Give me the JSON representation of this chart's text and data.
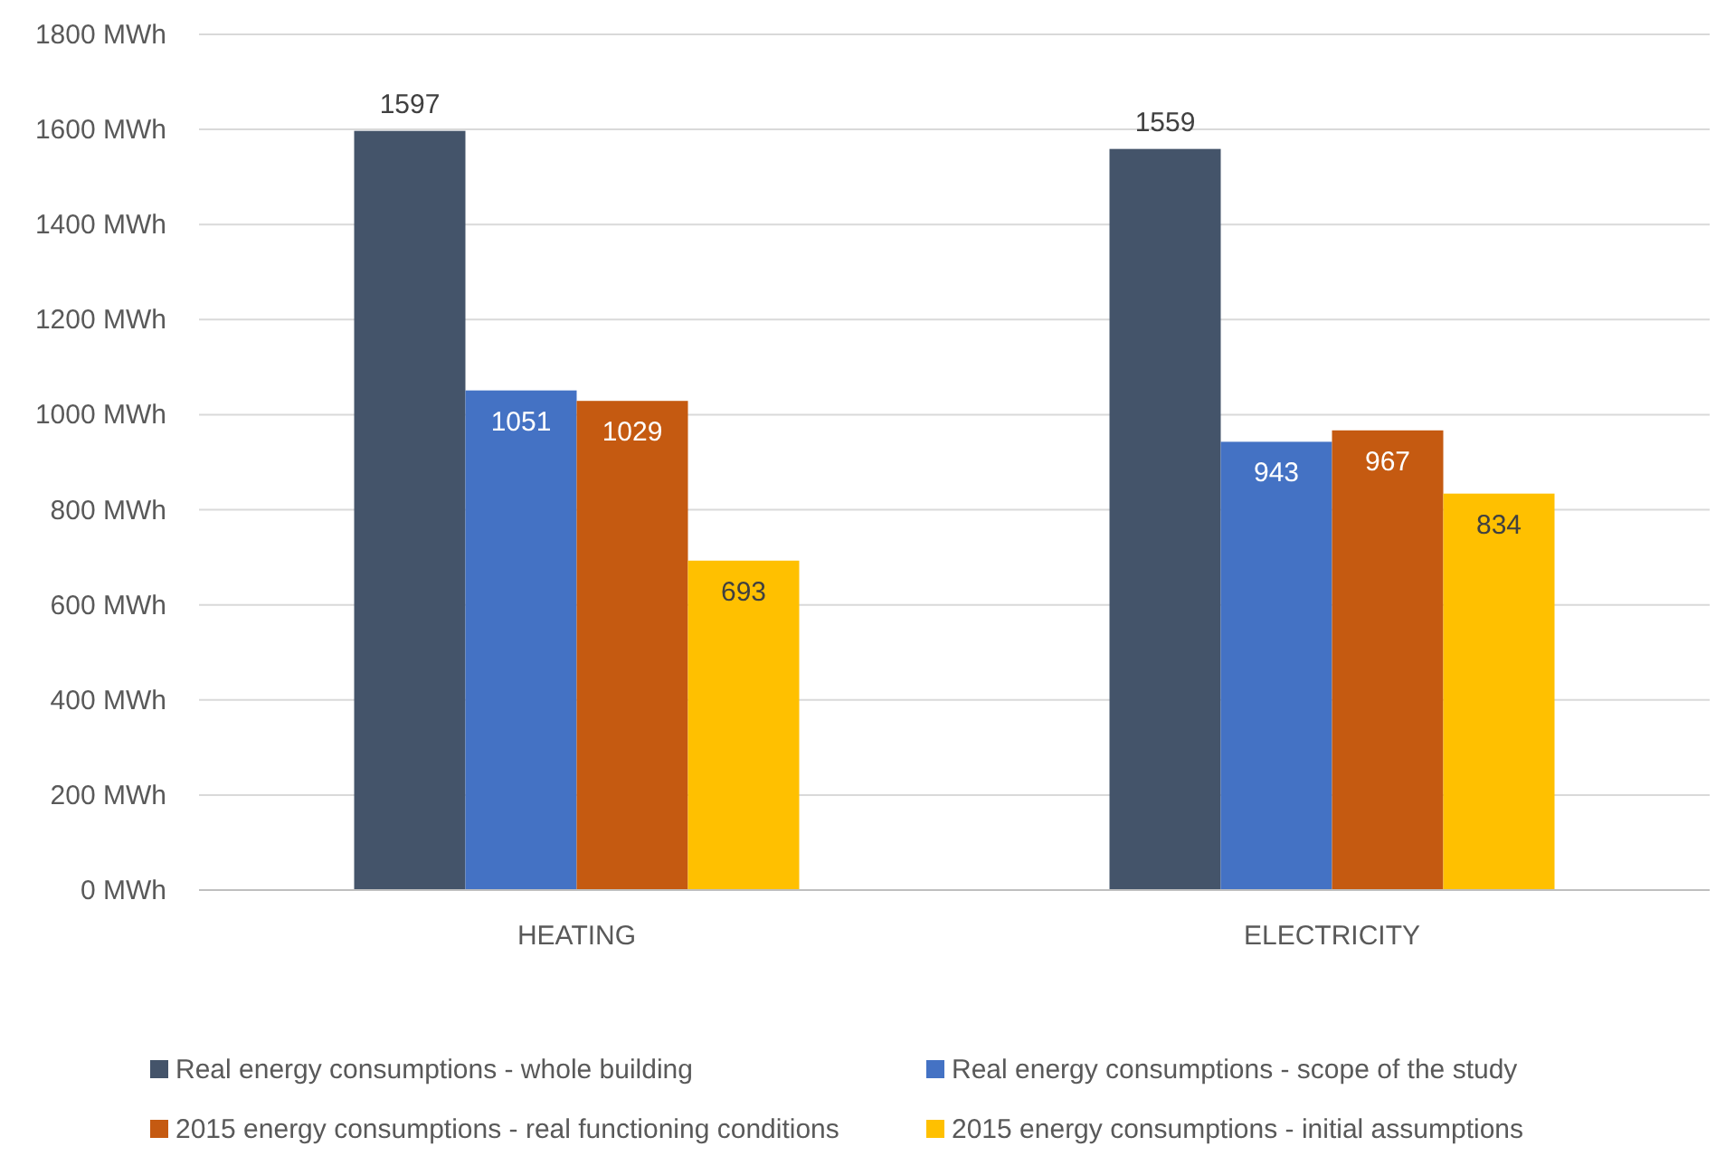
{
  "chart_data": {
    "type": "bar",
    "categories": [
      "HEATING",
      "ELECTRICITY"
    ],
    "series": [
      {
        "name": "Real energy consumptions - whole building",
        "color": "#44546a",
        "values": [
          1597,
          1559
        ]
      },
      {
        "name": "Real energy consumptions - scope of the study",
        "color": "#4472c4",
        "values": [
          1051,
          943
        ]
      },
      {
        "name": "2015 energy consumptions - real functioning conditions",
        "color": "#c55a11",
        "values": [
          1029,
          967
        ]
      },
      {
        "name": "2015 energy consumptions - initial assumptions",
        "color": "#ffc000",
        "values": [
          693,
          834
        ]
      }
    ],
    "ylim": [
      0,
      1800
    ],
    "yticks": [
      {
        "value": 0,
        "label": "0 MWh"
      },
      {
        "value": 200,
        "label": "200 MWh"
      },
      {
        "value": 400,
        "label": "400 MWh"
      },
      {
        "value": 600,
        "label": "600 MWh"
      },
      {
        "value": 800,
        "label": "800 MWh"
      },
      {
        "value": 1000,
        "label": "1000 MWh"
      },
      {
        "value": 1200,
        "label": "1200 MWh"
      },
      {
        "value": 1400,
        "label": "1400 MWh"
      },
      {
        "value": 1600,
        "label": "1600 MWh"
      },
      {
        "value": 1800,
        "label": "1800 MWh"
      }
    ],
    "grid": "y",
    "data_labels": true,
    "legend": "bottom"
  }
}
